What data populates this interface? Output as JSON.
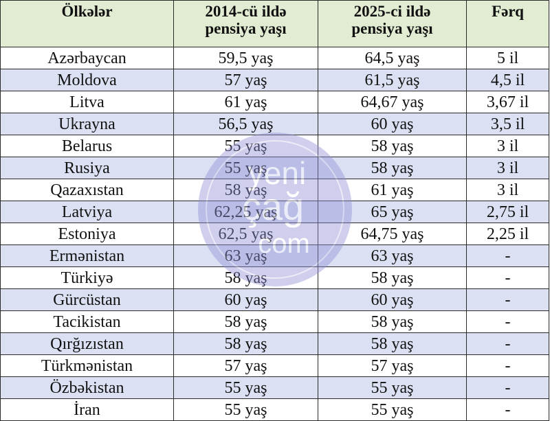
{
  "table": {
    "headers": {
      "country": "Ölkələr",
      "pension_2014_line1": "2014-cü ildə",
      "pension_2014_line2": "pensiya yaşı",
      "pension_2025_line1": "2025-ci ildə",
      "pension_2025_line2": "pensiya yaşı",
      "difference": "Fərq"
    },
    "rows": [
      {
        "country": "Azərbaycan",
        "age_2014": "59,5 yaş",
        "age_2025": "64,5 yaş",
        "difference": "5 il"
      },
      {
        "country": "Moldova",
        "age_2014": "57 yaş",
        "age_2025": "61,5 yaş",
        "difference": "4,5 il"
      },
      {
        "country": "Litva",
        "age_2014": "61 yaş",
        "age_2025": "64,67 yaş",
        "difference": "3,67 il"
      },
      {
        "country": "Ukrayna",
        "age_2014": "56,5 yaş",
        "age_2025": "60 yaş",
        "difference": "3,5 il"
      },
      {
        "country": "Belarus",
        "age_2014": "55 yaş",
        "age_2025": "58 yaş",
        "difference": "3 il"
      },
      {
        "country": "Rusiya",
        "age_2014": "55 yaş",
        "age_2025": "58 yaş",
        "difference": "3 il"
      },
      {
        "country": "Qazaxıstan",
        "age_2014": "58 yaş",
        "age_2025": "61 yaş",
        "difference": "3 il"
      },
      {
        "country": "Latviya",
        "age_2014": "62,25 yaş",
        "age_2025": "65 yaş",
        "difference": "2,75 il"
      },
      {
        "country": "Estoniya",
        "age_2014": "62,5 yaş",
        "age_2025": "64,75 yaş",
        "difference": "2,25 il"
      },
      {
        "country": "Ermənistan",
        "age_2014": "63 yaş",
        "age_2025": "63 yaş",
        "difference": "-"
      },
      {
        "country": "Türkiyə",
        "age_2014": "58 yaş",
        "age_2025": "58 yaş",
        "difference": "-"
      },
      {
        "country": "Gürcüstan",
        "age_2014": "60 yaş",
        "age_2025": "60 yaş",
        "difference": "-"
      },
      {
        "country": "Tacikistan",
        "age_2014": "58 yaş",
        "age_2025": "58 yaş",
        "difference": "-"
      },
      {
        "country": "Qırğızıstan",
        "age_2014": "58 yaş",
        "age_2025": "58 yaş",
        "difference": "-"
      },
      {
        "country": "Türkmənistan",
        "age_2014": "57 yaş",
        "age_2025": "57 yaş",
        "difference": "-"
      },
      {
        "country": "Özbəkistan",
        "age_2014": "55 yaş",
        "age_2025": "55 yaş",
        "difference": "-"
      },
      {
        "country": "İran",
        "age_2014": "55 yaş",
        "age_2025": "55 yaş",
        "difference": "-"
      }
    ]
  },
  "watermark": {
    "text_line1": "yeni",
    "text_line2": "çağ",
    "text_line3": "com",
    "color": "#8e8fd6"
  },
  "colors": {
    "header_bg": "#e1ecd3",
    "stripe_bg": "#dbe1f3",
    "border": "#2a2a2a"
  }
}
